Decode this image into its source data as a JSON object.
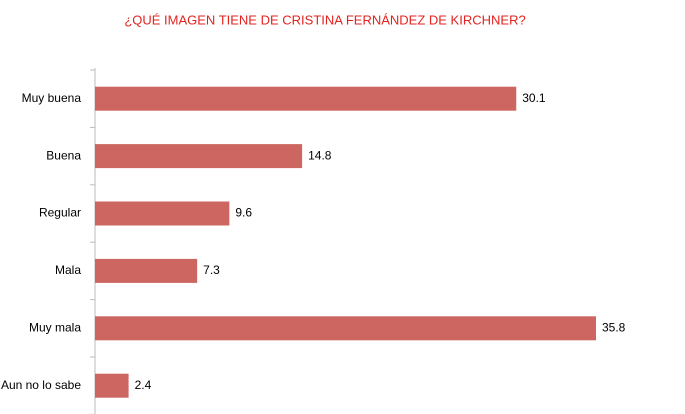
{
  "chart_data": {
    "type": "bar",
    "orientation": "horizontal",
    "title": "¿QUÉ IMAGEN TIENE DE CRISTINA FERNÁNDEZ DE KIRCHNER?",
    "categories": [
      "Muy buena",
      "Buena",
      "Regular",
      "Mala",
      "Muy mala",
      "Aun no lo sabe"
    ],
    "values": [
      30.1,
      14.8,
      9.6,
      7.3,
      35.8,
      2.4
    ],
    "color": "#cd6560"
  }
}
